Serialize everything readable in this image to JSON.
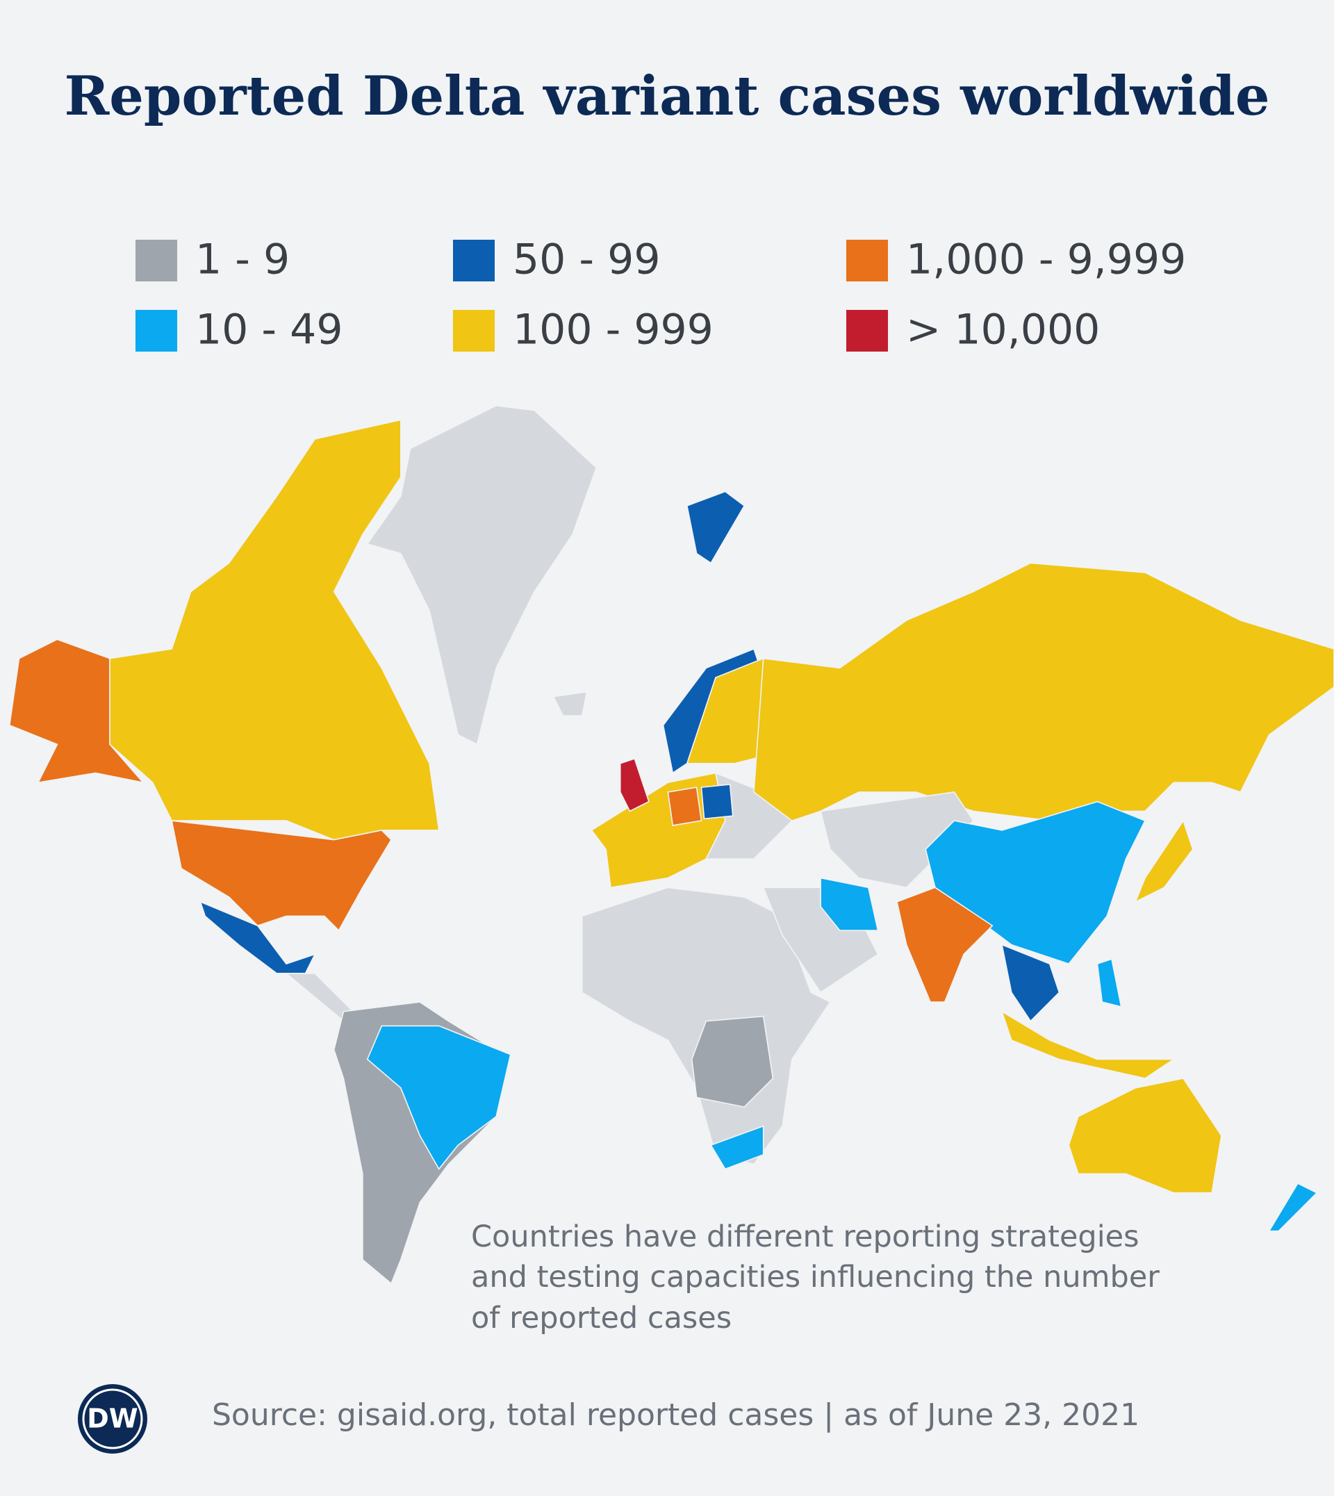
{
  "title": "Reported Delta variant cases worldwide",
  "legend": [
    {
      "label": "1 - 9",
      "color": "#9ea5ad"
    },
    {
      "label": "10 - 49",
      "color": "#0aa9f0"
    },
    {
      "label": "50 - 99",
      "color": "#0c5eb0"
    },
    {
      "label": "100 - 999",
      "color": "#f0c514"
    },
    {
      "label": "1,000 - 9,999",
      "color": "#e8711a"
    },
    {
      "label": "> 10,000",
      "color": "#c11d2f"
    }
  ],
  "note": [
    "Countries have different reporting strategies",
    "and testing capacities influencing the number",
    "of reported cases"
  ],
  "logo": "DW",
  "source": "Source: gisaid.org, total reported cases | as of June 23, 2021"
}
